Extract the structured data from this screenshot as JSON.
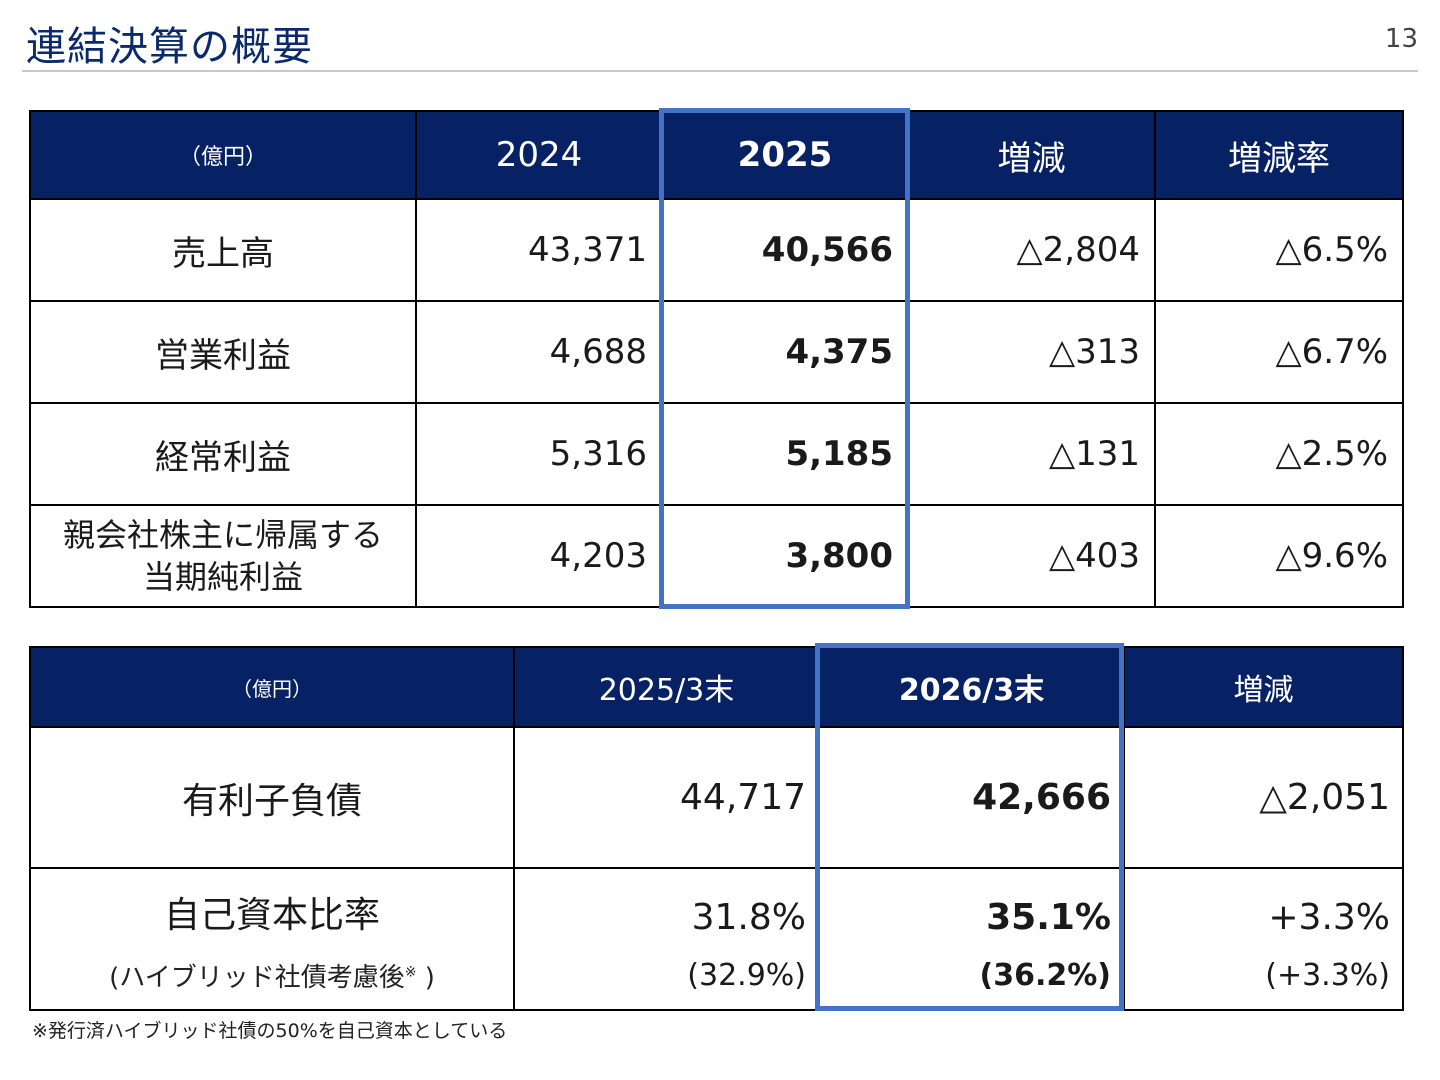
{
  "header": {
    "title": "連結決算の概要",
    "page_number": "13"
  },
  "table1": {
    "unit": "（億円）",
    "columns": [
      "2024",
      "2025",
      "増減",
      "増減率"
    ],
    "rows": [
      {
        "label": "売上高",
        "label2": "",
        "v2024": "43,371",
        "v2025": "40,566",
        "diff": "△2,804",
        "rate": "△6.5%"
      },
      {
        "label": "営業利益",
        "label2": "",
        "v2024": "4,688",
        "v2025": "4,375",
        "diff": "△313",
        "rate": "△6.7%"
      },
      {
        "label": "経常利益",
        "label2": "",
        "v2024": "5,316",
        "v2025": "5,185",
        "diff": "△131",
        "rate": "△2.5%"
      },
      {
        "label": "親会社株主に帰属する",
        "label2": "当期純利益",
        "v2024": "4,203",
        "v2025": "3,800",
        "diff": "△403",
        "rate": "△9.6%"
      }
    ]
  },
  "table2": {
    "unit": "（億円）",
    "columns": [
      "2025/3末",
      "2026/3末",
      "増減"
    ],
    "rows": [
      {
        "label": "有利子負債",
        "prev": "44,717",
        "curr": "42,666",
        "diff": "△2,051"
      },
      {
        "label": "自己資本比率",
        "prev": "31.8%",
        "curr": "35.1%",
        "diff": "+3.3%"
      }
    ],
    "sub_row": {
      "label": "(ハイブリッド社債考慮後",
      "mark": "※",
      "label_end": " )",
      "prev": "(32.9%)",
      "curr": "(36.2%)",
      "diff": "(+3.3%)"
    }
  },
  "footnote": "※発行済ハイブリッド社債の50%を自己資本としている",
  "colors": {
    "header_bg": "#072264",
    "title": "#0b2a6b",
    "highlight": "#4472c4"
  }
}
